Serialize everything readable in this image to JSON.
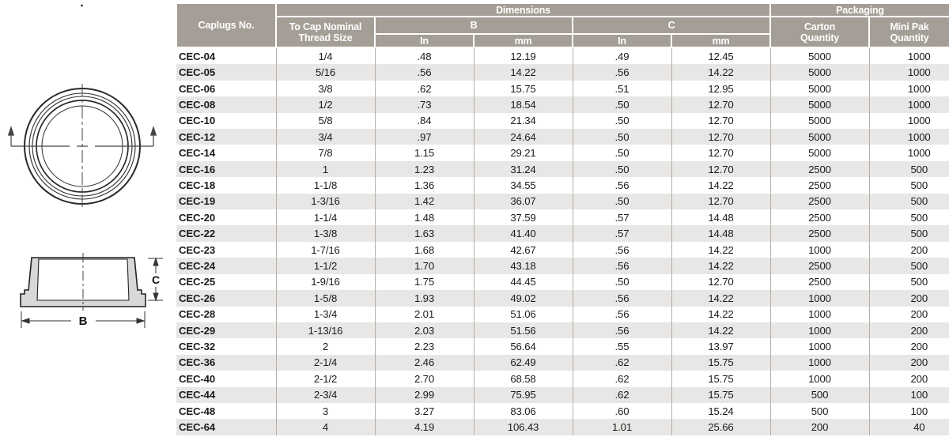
{
  "diagrams": {
    "dim_b": "B",
    "dim_c": "C"
  },
  "table": {
    "colors": {
      "header_bg": "#a59e96",
      "header_text": "#ffffff",
      "row_alt_bg": "#e8e7e5",
      "grid_line": "#b4afa9",
      "text": "#1b1b1b"
    },
    "header": {
      "caplugs_no": "Caplugs No.",
      "dimensions": "Dimensions",
      "packaging": "Packaging",
      "thread_size": "To Cap Nominal Thread Size",
      "b": "B",
      "c": "C",
      "in_b": "In",
      "mm_b": "mm",
      "in_c": "In",
      "mm_c": "mm",
      "carton_qty": "Carton Quantity",
      "mini_pak_qty": "Mini Pak Quantity"
    },
    "column_keys": [
      "caplugs-no",
      "thread-size",
      "b-in",
      "b-mm",
      "c-in",
      "c-mm",
      "carton-qty",
      "mini-pak-qty"
    ],
    "rows": [
      [
        "CEC-04",
        "1/4",
        ".48",
        "12.19",
        ".49",
        "12.45",
        "5000",
        "1000"
      ],
      [
        "CEC-05",
        "5/16",
        ".56",
        "14.22",
        ".56",
        "14.22",
        "5000",
        "1000"
      ],
      [
        "CEC-06",
        "3/8",
        ".62",
        "15.75",
        ".51",
        "12.95",
        "5000",
        "1000"
      ],
      [
        "CEC-08",
        "1/2",
        ".73",
        "18.54",
        ".50",
        "12.70",
        "5000",
        "1000"
      ],
      [
        "CEC-10",
        "5/8",
        ".84",
        "21.34",
        ".50",
        "12.70",
        "5000",
        "1000"
      ],
      [
        "CEC-12",
        "3/4",
        ".97",
        "24.64",
        ".50",
        "12.70",
        "5000",
        "1000"
      ],
      [
        "CEC-14",
        "7/8",
        "1.15",
        "29.21",
        ".50",
        "12.70",
        "5000",
        "1000"
      ],
      [
        "CEC-16",
        "1",
        "1.23",
        "31.24",
        ".50",
        "12.70",
        "2500",
        "500"
      ],
      [
        "CEC-18",
        "1-1/8",
        "1.36",
        "34.55",
        ".56",
        "14.22",
        "2500",
        "500"
      ],
      [
        "CEC-19",
        "1-3/16",
        "1.42",
        "36.07",
        ".50",
        "12.70",
        "2500",
        "500"
      ],
      [
        "CEC-20",
        "1-1/4",
        "1.48",
        "37.59",
        ".57",
        "14.48",
        "2500",
        "500"
      ],
      [
        "CEC-22",
        "1-3/8",
        "1.63",
        "41.40",
        ".57",
        "14.48",
        "2500",
        "500"
      ],
      [
        "CEC-23",
        "1-7/16",
        "1.68",
        "42.67",
        ".56",
        "14.22",
        "1000",
        "200"
      ],
      [
        "CEC-24",
        "1-1/2",
        "1.70",
        "43.18",
        ".56",
        "14.22",
        "2500",
        "500"
      ],
      [
        "CEC-25",
        "1-9/16",
        "1.75",
        "44.45",
        ".50",
        "12.70",
        "2500",
        "500"
      ],
      [
        "CEC-26",
        "1-5/8",
        "1.93",
        "49.02",
        ".56",
        "14.22",
        "1000",
        "200"
      ],
      [
        "CEC-28",
        "1-3/4",
        "2.01",
        "51.06",
        ".56",
        "14.22",
        "1000",
        "200"
      ],
      [
        "CEC-29",
        "1-13/16",
        "2.03",
        "51.56",
        ".56",
        "14.22",
        "1000",
        "200"
      ],
      [
        "CEC-32",
        "2",
        "2.23",
        "56.64",
        ".55",
        "13.97",
        "1000",
        "200"
      ],
      [
        "CEC-36",
        "2-1/4",
        "2.46",
        "62.49",
        ".62",
        "15.75",
        "1000",
        "200"
      ],
      [
        "CEC-40",
        "2-1/2",
        "2.70",
        "68.58",
        ".62",
        "15.75",
        "1000",
        "200"
      ],
      [
        "CEC-44",
        "2-3/4",
        "2.99",
        "75.95",
        ".62",
        "15.75",
        "500",
        "100"
      ],
      [
        "CEC-48",
        "3",
        "3.27",
        "83.06",
        ".60",
        "15.24",
        "500",
        "100"
      ],
      [
        "CEC-64",
        "4",
        "4.19",
        "106.43",
        "1.01",
        "25.66",
        "200",
        "40"
      ]
    ]
  }
}
